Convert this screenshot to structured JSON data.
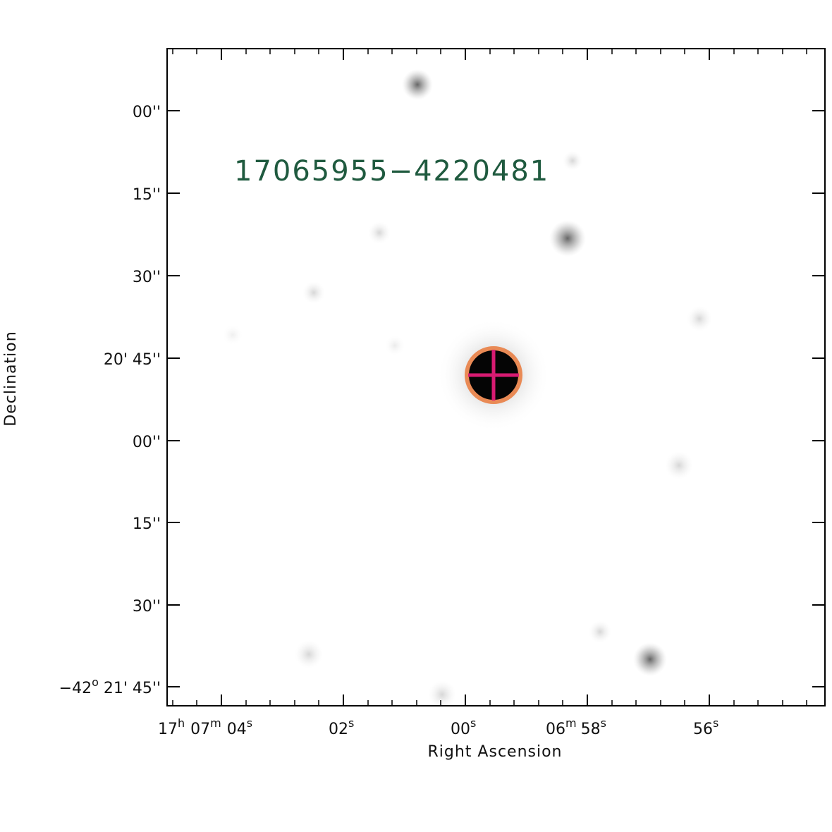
{
  "figure": {
    "source_name": "17065955−4220481",
    "xlabel": "Right Ascension",
    "ylabel": "Declination"
  },
  "ra_ticks": {
    "t1": {
      "h": "17",
      "m": "07",
      "s": "04"
    },
    "t2": "02",
    "t3": "00",
    "t4": {
      "m": "06",
      "s": "58"
    },
    "t5": "56",
    "units": {
      "h": "h",
      "m": "m",
      "s": "s"
    }
  },
  "dec_ticks": {
    "t1": "00''",
    "t2": "15''",
    "t3": "30''",
    "t4": "20' 45''",
    "t5": "00''",
    "t6": "15''",
    "t7": "30''",
    "t8_deg": "−42",
    "t8_deg_unit": "o",
    "t8_rest": " 21' 45''"
  },
  "colors": {
    "marker_circle": "#e98a55",
    "marker_cross": "#d81b72",
    "source_label": "#1f5a3f",
    "frame": "#000000"
  }
}
